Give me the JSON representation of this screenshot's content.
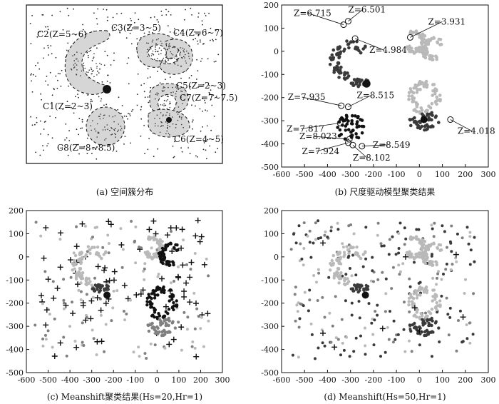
{
  "panels": [
    {
      "id": "a",
      "caption": "(a) 空间簇分布",
      "clusters": [
        {
          "label": "C2(Z=5~6)"
        },
        {
          "label": "C3(Z=3~5)"
        },
        {
          "label": "C4(Z=6~7)"
        },
        {
          "label": "C5(Z=2~3)"
        },
        {
          "label": "C7(Z=7~7.5)"
        },
        {
          "label": "C1(Z=2~3)"
        },
        {
          "label": "C8(Z=8~8.5)"
        },
        {
          "label": "C6(Z=4~5)"
        }
      ]
    },
    {
      "id": "b",
      "caption": "(b) 尺度驱动模型聚类结果",
      "annotations": [
        "Z=6.501",
        "Z=6.715",
        "Z=4.984",
        "Z=3.931",
        "Z=7.935",
        "Z=8.515",
        "Z=7.817",
        "Z=4.018",
        "Z=8.023",
        "Z=8.549",
        "Z=7.924",
        "Z=8.102"
      ]
    },
    {
      "id": "c",
      "caption": "(c) Meanshift聚类结果(Hs=20,Hr=1)"
    },
    {
      "id": "d",
      "caption": "(d) Meanshift(Hs=50,Hr=1)"
    }
  ],
  "axes": {
    "xticks": [
      -600,
      -500,
      -400,
      -300,
      -200,
      -100,
      0,
      100,
      200,
      300
    ],
    "yticks": [
      200,
      100,
      0,
      -100,
      -200,
      -300,
      -400,
      -500
    ],
    "xlim": [
      -600,
      300
    ],
    "ylim": [
      -500,
      200
    ]
  },
  "chart_data": {
    "type": "scatter",
    "xlim": [
      -600,
      300
    ],
    "ylim": [
      -500,
      200
    ],
    "grid": false,
    "annotated_points": [
      {
        "label": "Z=6.501",
        "x": -310,
        "y": 130
      },
      {
        "label": "Z=6.715",
        "x": -330,
        "y": 115
      },
      {
        "label": "Z=4.984",
        "x": -280,
        "y": 55
      },
      {
        "label": "Z=3.931",
        "x": -40,
        "y": 60
      },
      {
        "label": "Z=7.935",
        "x": -340,
        "y": -235
      },
      {
        "label": "Z=8.515",
        "x": -310,
        "y": -240
      },
      {
        "label": "Z=7.817",
        "x": -345,
        "y": -310
      },
      {
        "label": "Z=4.018",
        "x": 135,
        "y": -295
      },
      {
        "label": "Z=8.023",
        "x": -305,
        "y": -380
      },
      {
        "label": "Z=8.549",
        "x": -250,
        "y": -410
      },
      {
        "label": "Z=7.924",
        "x": -310,
        "y": -395
      },
      {
        "label": "Z=8.102",
        "x": -290,
        "y": -405
      }
    ]
  },
  "colors": {
    "ink": "#111111",
    "dark": "#3a3a3a",
    "mid": "#808080",
    "light": "#b9b9b9",
    "shade": "#dcdcdc"
  }
}
